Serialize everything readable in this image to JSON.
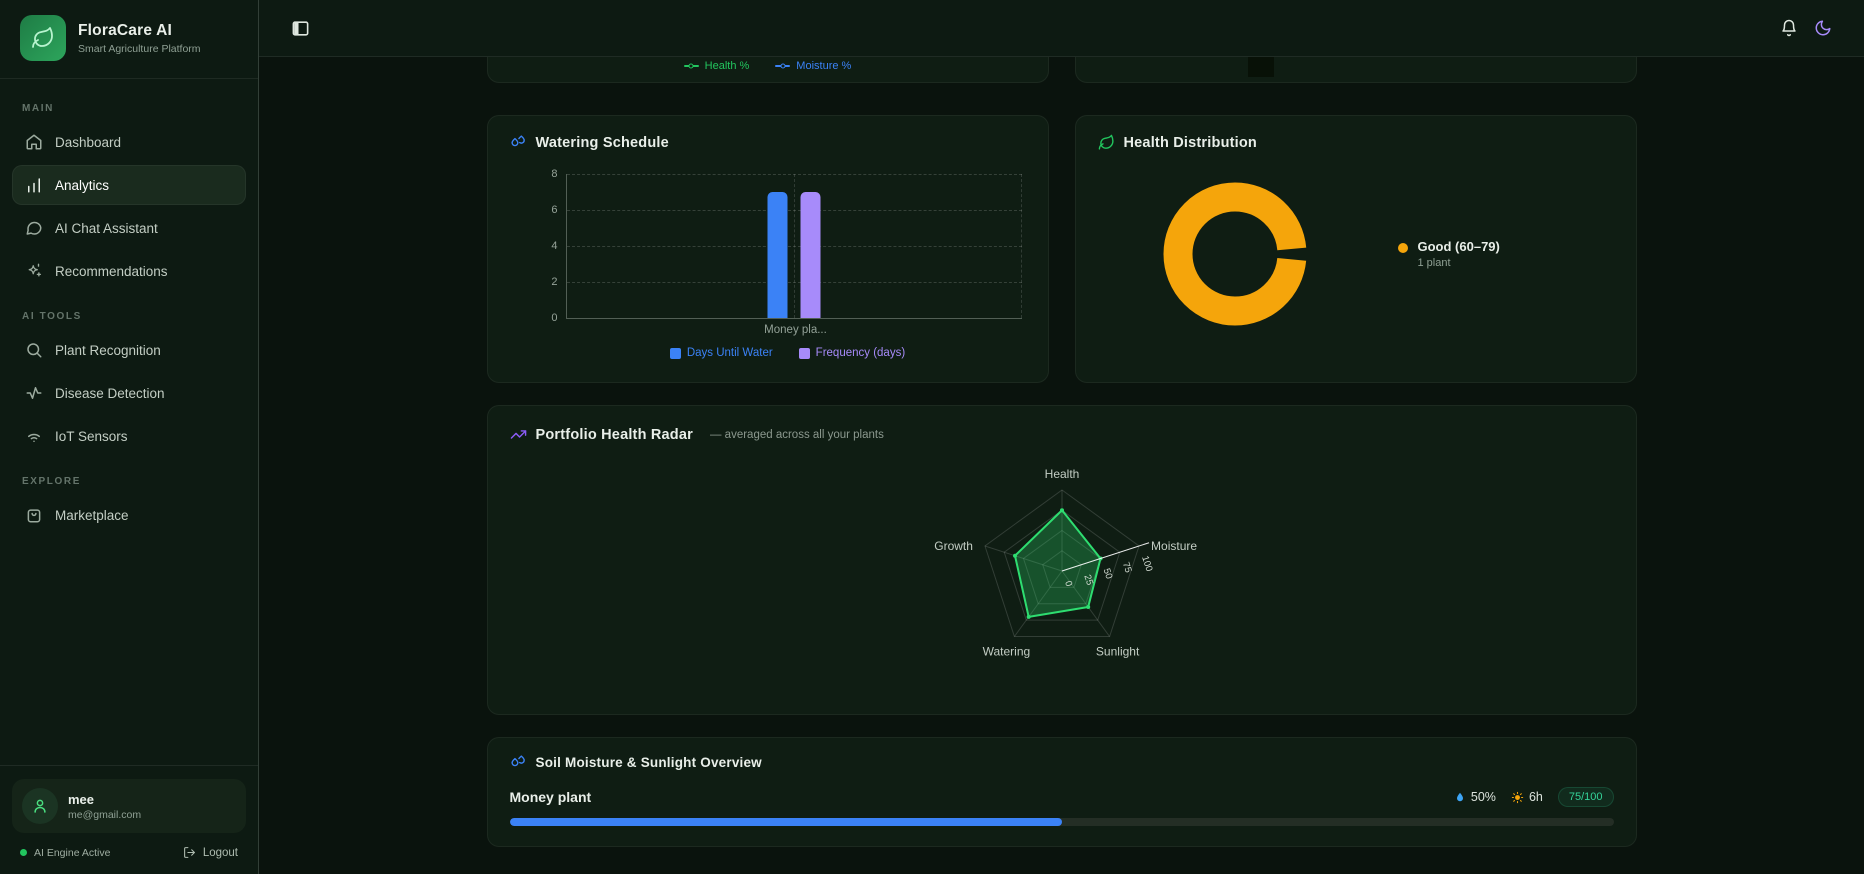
{
  "brand": {
    "name": "FloraCare AI",
    "tagline": "Smart Agriculture Platform"
  },
  "sidebar": {
    "sections": [
      {
        "label": "MAIN",
        "items": [
          {
            "label": "Dashboard",
            "icon": "home",
            "active": false
          },
          {
            "label": "Analytics",
            "icon": "bar-chart",
            "active": true
          },
          {
            "label": "AI Chat Assistant",
            "icon": "chat-bubble",
            "active": false
          },
          {
            "label": "Recommendations",
            "icon": "sparkles",
            "active": false
          }
        ]
      },
      {
        "label": "AI TOOLS",
        "items": [
          {
            "label": "Plant Recognition",
            "icon": "search",
            "active": false
          },
          {
            "label": "Disease Detection",
            "icon": "activity",
            "active": false
          },
          {
            "label": "IoT Sensors",
            "icon": "wifi",
            "active": false
          }
        ]
      },
      {
        "label": "EXPLORE",
        "items": [
          {
            "label": "Marketplace",
            "icon": "shopping-bag",
            "active": false
          }
        ]
      }
    ],
    "user": {
      "name": "mee",
      "email": "me@gmail.com"
    },
    "status": "AI Engine Active",
    "logout": "Logout"
  },
  "cards": {
    "soil": {
      "plant": "Money plant",
      "moisture": "50%",
      "sunlight": "6h",
      "health_badge": "75/100",
      "progress_pct": 50
    }
  },
  "chart_data": [
    {
      "id": "plant-trend",
      "type": "line",
      "note": "chart scrolled mostly out of view; only legend visible",
      "series": [
        {
          "name": "Health %",
          "color": "#22c55e"
        },
        {
          "name": "Moisture %",
          "color": "#3b82f6"
        }
      ],
      "legend_position": "bottom"
    },
    {
      "id": "watering-schedule",
      "type": "bar",
      "title": "Watering Schedule",
      "categories": [
        "Money plant"
      ],
      "x_tick_labels": [
        "Money pla..."
      ],
      "series": [
        {
          "name": "Days Until Water",
          "values": [
            7
          ],
          "color": "#3b82f6"
        },
        {
          "name": "Frequency (days)",
          "values": [
            7
          ],
          "color": "#a78bfa"
        }
      ],
      "ylim": [
        0,
        8
      ],
      "yticks": [
        0,
        2,
        4,
        6,
        8
      ],
      "grid": "dashed",
      "legend_position": "bottom"
    },
    {
      "id": "health-distribution",
      "type": "pie",
      "title": "Health Distribution",
      "donut": true,
      "slices": [
        {
          "label": "Good (60–79)",
          "sublabel": "1 plant",
          "value": 1,
          "color": "#f5a50b"
        }
      ],
      "legend_position": "right"
    },
    {
      "id": "portfolio-health-radar",
      "type": "radar",
      "title": "Portfolio Health Radar",
      "subtitle": "— averaged across all your plants",
      "axes": [
        "Health",
        "Moisture",
        "Sunlight",
        "Watering",
        "Growth"
      ],
      "values": [
        75,
        50,
        55,
        70,
        61
      ],
      "max": 100,
      "scale_ticks": [
        0,
        25,
        50,
        75,
        100
      ],
      "stroke_color": "#2edd70",
      "fill_color": "rgba(46,221,112,0.28)"
    },
    {
      "id": "soil-moisture-sunlight",
      "type": "table",
      "title": "Soil Moisture & Sunlight Overview",
      "rows": [
        {
          "plant": "Money plant",
          "moisture_pct": 50,
          "sunlight": "6h",
          "health_score": "75/100"
        }
      ]
    }
  ]
}
